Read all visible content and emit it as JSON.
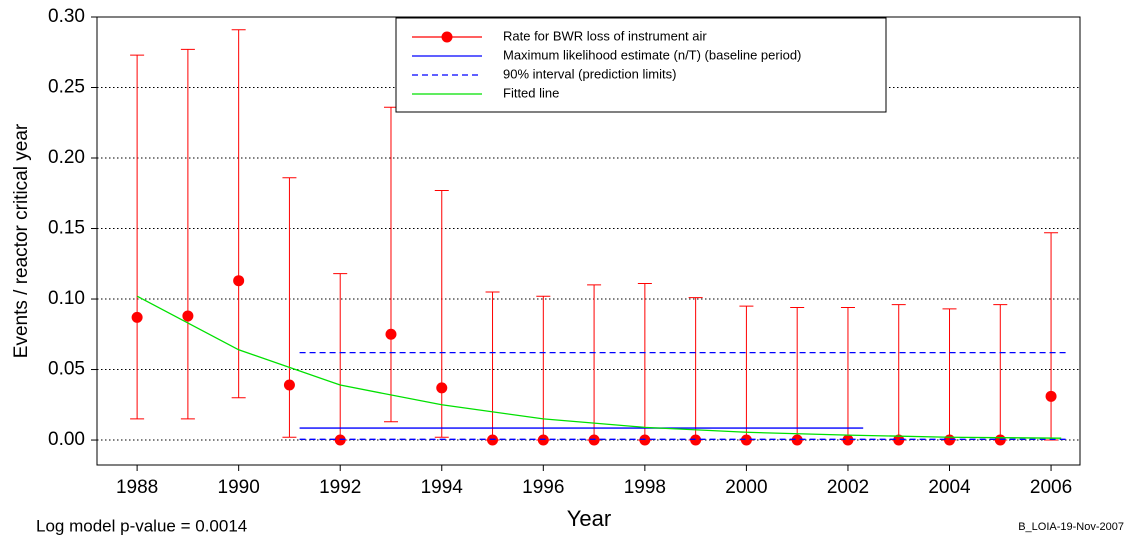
{
  "chart_data": {
    "type": "errorbar",
    "x_label": "Year",
    "y_label": "Events / reactor critical year",
    "annotations": [
      "Log model p-value = 0.0014",
      "B_LOIA-19-Nov-2007"
    ],
    "xlim": [
      1987.21,
      2006.57
    ],
    "ylim": [
      -0.0177,
      0.3
    ],
    "xticks": [
      1988,
      1990,
      1992,
      1994,
      1996,
      1998,
      2000,
      2002,
      2004,
      2006
    ],
    "yticks": [
      {
        "value": 0,
        "label": "0.00"
      },
      {
        "value": 0.05,
        "label": "0.05"
      },
      {
        "value": 0.1,
        "label": "0.10"
      },
      {
        "value": 0.15,
        "label": "0.15"
      },
      {
        "value": 0.2,
        "label": "0.20"
      },
      {
        "value": 0.25,
        "label": "0.25"
      },
      {
        "value": 0.3,
        "label": "0.30"
      }
    ],
    "grid": true,
    "series": [
      {
        "name": "Rate for BWR loss of instrument air",
        "color": "#ff0000",
        "style": "errorbar",
        "x": [
          1988,
          1989,
          1990,
          1991,
          1992,
          1993,
          1994,
          1995,
          1996,
          1997,
          1998,
          1999,
          2000,
          2001,
          2002,
          2003,
          2004,
          2005,
          2006
        ],
        "values": [
          0.087,
          0.088,
          0.113,
          0.039,
          0,
          0.075,
          0.037,
          0,
          0,
          0,
          0,
          0,
          0,
          0,
          0,
          0,
          0,
          0,
          0.031
        ],
        "lower": [
          0.015,
          0.015,
          0.03,
          0.002,
          0,
          0.013,
          0.002,
          0,
          0,
          0,
          0,
          0,
          0,
          0,
          0,
          0,
          0,
          0,
          0
        ],
        "upper": [
          0.273,
          0.277,
          0.291,
          0.186,
          0.118,
          0.236,
          0.177,
          0.105,
          0.102,
          0.11,
          0.111,
          0.101,
          0.095,
          0.094,
          0.094,
          0.096,
          0.093,
          0.096,
          0.147
        ]
      },
      {
        "name": "Maximum likelihood estimate (n/T) (baseline period)",
        "color": "#0000ff",
        "style": "solid",
        "x": [
          1991.2,
          2002.3
        ],
        "values": [
          0.0085,
          0.0085
        ]
      },
      {
        "name": "90% interval (prediction limits)",
        "color": "#0000ff",
        "style": "dashed",
        "x": [
          1991.2,
          2006.3
        ],
        "values": [
          0.062,
          0.062
        ],
        "lower": [
          0.0005,
          0.0005
        ]
      },
      {
        "name": "Fitted line",
        "color": "#00e000",
        "style": "solid",
        "x": [
          1988,
          1990,
          1992,
          1994,
          1996,
          1998,
          2000,
          2002,
          2004,
          2006.2
        ],
        "values": [
          0.102,
          0.064,
          0.039,
          0.025,
          0.015,
          0.009,
          0.0055,
          0.0035,
          0.002,
          0.0013
        ]
      }
    ]
  }
}
